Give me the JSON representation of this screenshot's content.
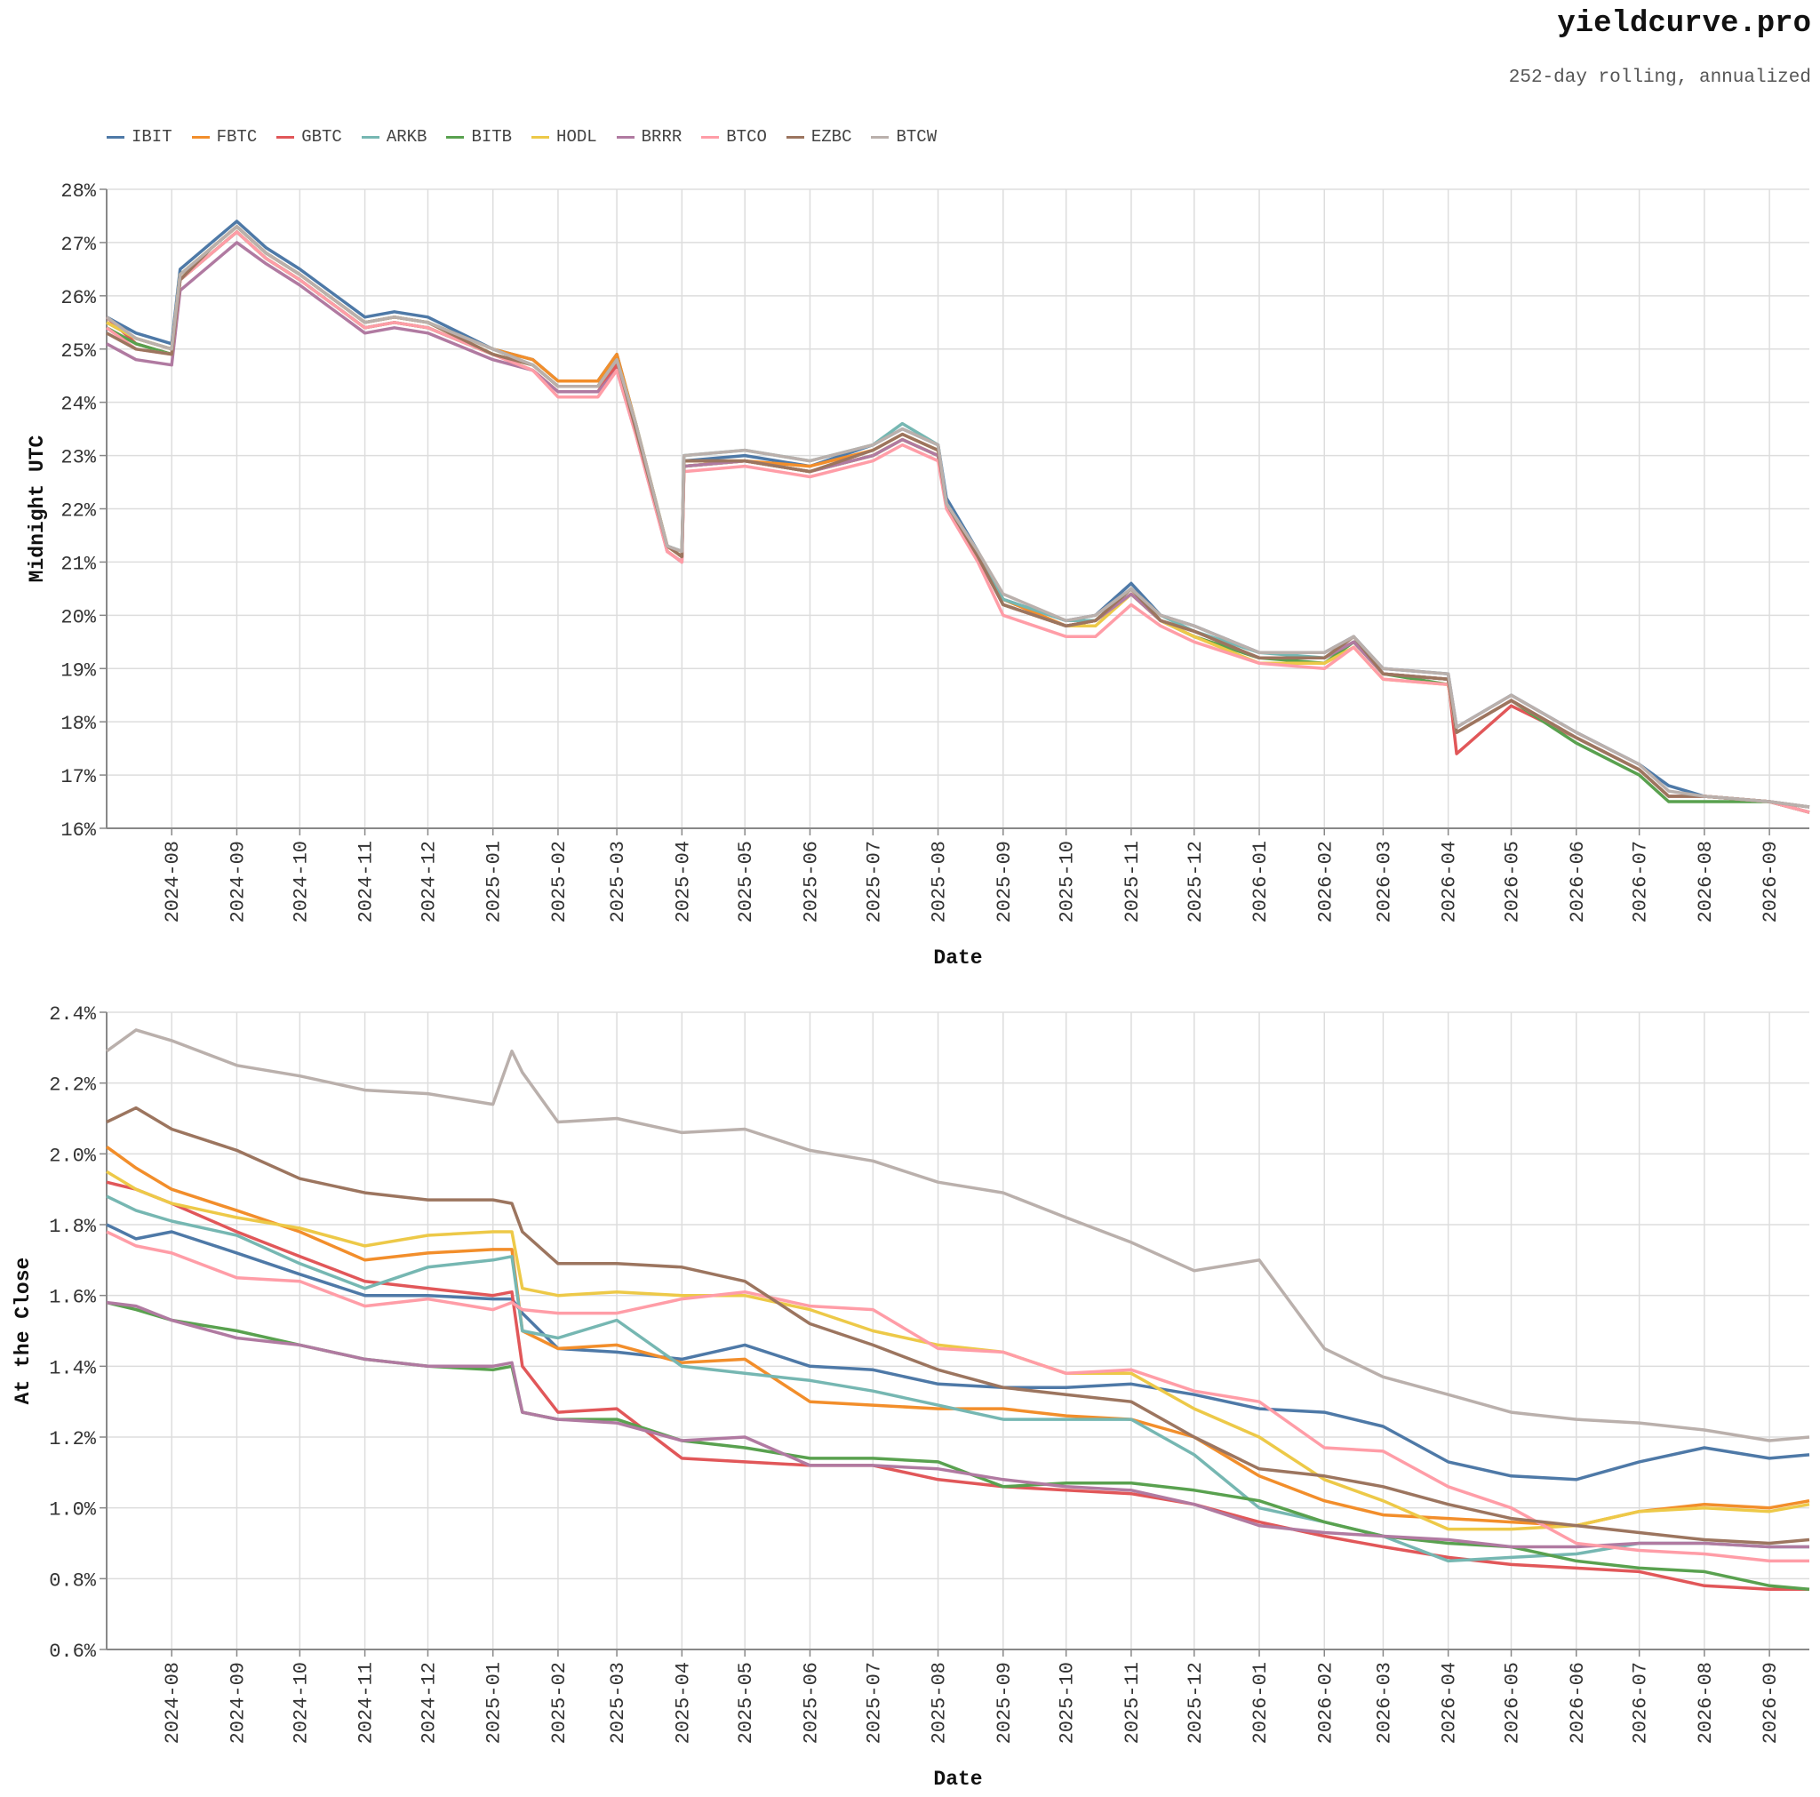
{
  "header": {
    "brand": "yieldcurve.pro",
    "subtitle": "252-day rolling, annualized"
  },
  "legend": [
    {
      "name": "IBIT",
      "color": "#4e79a7"
    },
    {
      "name": "FBTC",
      "color": "#f28e2b"
    },
    {
      "name": "GBTC",
      "color": "#e15759"
    },
    {
      "name": "ARKB",
      "color": "#76b7b2"
    },
    {
      "name": "BITB",
      "color": "#59a14f"
    },
    {
      "name": "HODL",
      "color": "#edc948"
    },
    {
      "name": "BRRR",
      "color": "#b07aa1"
    },
    {
      "name": "BTCO",
      "color": "#ff9da7"
    },
    {
      "name": "EZBC",
      "color": "#9c755f"
    },
    {
      "name": "BTCW",
      "color": "#bab0ac"
    }
  ],
  "chart_data": [
    {
      "type": "line",
      "xlabel": "Date",
      "ylabel": "Midnight UTC",
      "ylim": [
        16,
        28
      ],
      "y_ticks": [
        "16%",
        "17%",
        "18%",
        "19%",
        "20%",
        "21%",
        "22%",
        "23%",
        "24%",
        "25%",
        "26%",
        "27%",
        "28%"
      ],
      "x_ticks": [
        "2024-08",
        "2024-09",
        "2024-10",
        "2024-11",
        "2024-12",
        "2025-01",
        "2025-02",
        "2025-03",
        "2025-04",
        "2025-05",
        "2025-06",
        "2025-07",
        "2025-08",
        "2025-09",
        "2025-10",
        "2025-11",
        "2025-12",
        "2026-01",
        "2026-02",
        "2026-03",
        "2026-04",
        "2026-05",
        "2026-06",
        "2026-07",
        "2026-08",
        "2026-09"
      ],
      "x_range": [
        "2024-07-01",
        "2026-09-20"
      ],
      "grid": true,
      "x": [
        "2024-07-01",
        "2024-07-15",
        "2024-08-01",
        "2024-08-05",
        "2024-08-20",
        "2024-09-01",
        "2024-09-15",
        "2024-10-01",
        "2024-11-01",
        "2024-11-15",
        "2024-12-01",
        "2025-01-01",
        "2025-01-20",
        "2025-02-01",
        "2025-02-20",
        "2025-03-01",
        "2025-03-10",
        "2025-03-25",
        "2025-04-01",
        "2025-04-02",
        "2025-05-01",
        "2025-06-01",
        "2025-07-01",
        "2025-07-15",
        "2025-08-01",
        "2025-08-05",
        "2025-08-20",
        "2025-09-01",
        "2025-10-01",
        "2025-10-15",
        "2025-11-01",
        "2025-11-15",
        "2025-12-01",
        "2026-01-01",
        "2026-02-01",
        "2026-02-15",
        "2026-03-01",
        "2026-04-01",
        "2026-04-05",
        "2026-05-01",
        "2026-06-01",
        "2026-07-01",
        "2026-07-15",
        "2026-08-01",
        "2026-09-01",
        "2026-09-20"
      ],
      "series": [
        {
          "name": "IBIT",
          "values": [
            25.6,
            25.3,
            25.1,
            26.5,
            27.0,
            27.4,
            26.9,
            26.5,
            25.6,
            25.7,
            25.6,
            25.0,
            24.8,
            24.4,
            24.4,
            24.9,
            23.6,
            21.3,
            21.2,
            22.9,
            23.0,
            22.8,
            23.2,
            23.5,
            23.2,
            22.2,
            21.2,
            20.3,
            19.9,
            20.0,
            20.6,
            20.0,
            19.8,
            19.3,
            19.3,
            19.6,
            19.0,
            18.9,
            17.9,
            18.5,
            17.8,
            17.2,
            16.8,
            16.6,
            16.5,
            16.4
          ]
        },
        {
          "name": "FBTC",
          "values": [
            25.5,
            25.2,
            25.0,
            26.4,
            26.9,
            27.3,
            26.8,
            26.4,
            25.5,
            25.6,
            25.5,
            25.0,
            24.8,
            24.4,
            24.4,
            24.9,
            23.6,
            21.3,
            21.1,
            22.9,
            22.9,
            22.8,
            23.1,
            23.4,
            23.1,
            22.1,
            21.1,
            20.3,
            19.8,
            19.9,
            20.5,
            19.9,
            19.7,
            19.2,
            19.2,
            19.5,
            18.9,
            18.8,
            17.8,
            18.4,
            17.7,
            17.1,
            16.6,
            16.6,
            16.5,
            16.3
          ]
        },
        {
          "name": "GBTC",
          "values": [
            25.6,
            25.1,
            24.9,
            26.3,
            26.8,
            27.2,
            26.7,
            26.3,
            25.4,
            25.5,
            25.4,
            24.9,
            24.6,
            24.2,
            24.2,
            24.7,
            23.5,
            21.2,
            21.0,
            22.8,
            22.9,
            22.7,
            23.0,
            23.3,
            23.0,
            22.1,
            21.1,
            20.2,
            19.8,
            19.9,
            20.4,
            19.9,
            19.6,
            19.2,
            19.2,
            19.5,
            18.9,
            18.8,
            17.4,
            18.3,
            17.7,
            17.1,
            16.6,
            16.6,
            16.5,
            16.3
          ]
        },
        {
          "name": "ARKB",
          "values": [
            25.5,
            25.2,
            25.0,
            26.4,
            26.9,
            27.3,
            26.8,
            26.4,
            25.5,
            25.6,
            25.5,
            25.0,
            24.7,
            24.3,
            24.3,
            24.8,
            23.6,
            21.3,
            21.2,
            23.0,
            23.1,
            22.9,
            23.2,
            23.6,
            23.2,
            22.1,
            21.2,
            20.3,
            19.9,
            19.9,
            20.5,
            20.0,
            19.7,
            19.3,
            19.2,
            19.5,
            18.9,
            18.8,
            17.8,
            18.4,
            17.7,
            17.1,
            16.6,
            16.6,
            16.5,
            16.3
          ]
        },
        {
          "name": "BITB",
          "values": [
            25.4,
            25.1,
            24.9,
            26.3,
            26.8,
            27.2,
            26.7,
            26.3,
            25.4,
            25.5,
            25.4,
            24.9,
            24.7,
            24.3,
            24.3,
            24.8,
            23.5,
            21.3,
            21.1,
            22.8,
            22.9,
            22.7,
            23.0,
            23.3,
            23.0,
            22.1,
            21.1,
            20.2,
            19.8,
            19.9,
            20.4,
            19.9,
            19.6,
            19.2,
            19.1,
            19.5,
            18.9,
            18.7,
            17.8,
            18.4,
            17.6,
            17.0,
            16.5,
            16.5,
            16.5,
            16.3
          ]
        },
        {
          "name": "HODL",
          "values": [
            25.5,
            25.2,
            25.0,
            26.4,
            26.9,
            27.3,
            26.8,
            26.4,
            25.5,
            25.6,
            25.5,
            24.9,
            24.7,
            24.3,
            24.3,
            24.8,
            23.6,
            21.3,
            21.1,
            22.8,
            22.9,
            22.7,
            23.0,
            23.3,
            23.0,
            22.1,
            21.1,
            20.2,
            19.8,
            19.8,
            20.4,
            19.9,
            19.6,
            19.1,
            19.1,
            19.4,
            18.8,
            18.7,
            17.8,
            18.4,
            17.7,
            17.1,
            16.6,
            16.6,
            16.5,
            16.3
          ]
        },
        {
          "name": "BRRR",
          "values": [
            25.1,
            24.8,
            24.7,
            26.1,
            26.6,
            27.0,
            26.6,
            26.2,
            25.3,
            25.4,
            25.3,
            24.8,
            24.6,
            24.2,
            24.2,
            24.6,
            23.4,
            21.2,
            21.0,
            22.8,
            22.9,
            22.7,
            23.0,
            23.3,
            23.0,
            22.1,
            21.1,
            20.2,
            19.8,
            19.9,
            20.4,
            19.9,
            19.7,
            19.2,
            19.2,
            19.5,
            18.9,
            18.8,
            17.8,
            18.4,
            17.7,
            17.1,
            16.6,
            16.6,
            16.5,
            16.3
          ]
        },
        {
          "name": "BTCO",
          "values": [
            25.4,
            25.0,
            24.9,
            26.3,
            26.8,
            27.2,
            26.7,
            26.3,
            25.4,
            25.5,
            25.4,
            24.9,
            24.6,
            24.1,
            24.1,
            24.6,
            23.4,
            21.2,
            21.0,
            22.7,
            22.8,
            22.6,
            22.9,
            23.2,
            22.9,
            22.0,
            21.0,
            20.0,
            19.6,
            19.6,
            20.2,
            19.8,
            19.5,
            19.1,
            19.0,
            19.4,
            18.8,
            18.7,
            17.8,
            18.4,
            17.7,
            17.1,
            16.6,
            16.6,
            16.5,
            16.3
          ]
        },
        {
          "name": "EZBC",
          "values": [
            25.3,
            25.0,
            24.9,
            26.3,
            26.9,
            27.3,
            26.8,
            26.4,
            25.5,
            25.6,
            25.5,
            24.9,
            24.7,
            24.3,
            24.3,
            24.8,
            23.5,
            21.3,
            21.1,
            22.9,
            22.9,
            22.7,
            23.1,
            23.4,
            23.1,
            22.1,
            21.1,
            20.2,
            19.8,
            19.9,
            20.5,
            19.9,
            19.7,
            19.2,
            19.2,
            19.6,
            18.9,
            18.8,
            17.8,
            18.4,
            17.7,
            17.1,
            16.6,
            16.6,
            16.5,
            16.4
          ]
        },
        {
          "name": "BTCW",
          "values": [
            25.6,
            25.2,
            25.0,
            26.4,
            26.9,
            27.3,
            26.8,
            26.4,
            25.5,
            25.6,
            25.5,
            25.0,
            24.7,
            24.3,
            24.3,
            24.8,
            23.6,
            21.3,
            21.2,
            23.0,
            23.1,
            22.9,
            23.2,
            23.5,
            23.2,
            22.1,
            21.2,
            20.4,
            19.9,
            20.0,
            20.5,
            20.0,
            19.8,
            19.3,
            19.3,
            19.6,
            19.0,
            18.9,
            17.9,
            18.5,
            17.8,
            17.2,
            16.7,
            16.6,
            16.5,
            16.4
          ]
        }
      ]
    },
    {
      "type": "line",
      "xlabel": "Date",
      "ylabel": "At the Close",
      "ylim": [
        0.6,
        2.4
      ],
      "y_ticks": [
        "0.6%",
        "0.8%",
        "1.0%",
        "1.2%",
        "1.4%",
        "1.6%",
        "1.8%",
        "2.0%",
        "2.2%",
        "2.4%"
      ],
      "x_ticks": [
        "2024-08",
        "2024-09",
        "2024-10",
        "2024-11",
        "2024-12",
        "2025-01",
        "2025-02",
        "2025-03",
        "2025-04",
        "2025-05",
        "2025-06",
        "2025-07",
        "2025-08",
        "2025-09",
        "2025-10",
        "2025-11",
        "2025-12",
        "2026-01",
        "2026-02",
        "2026-03",
        "2026-04",
        "2026-05",
        "2026-06",
        "2026-07",
        "2026-08",
        "2026-09"
      ],
      "x_range": [
        "2024-07-01",
        "2026-09-20"
      ],
      "grid": true,
      "x": [
        "2024-07-01",
        "2024-07-15",
        "2024-08-01",
        "2024-09-01",
        "2024-10-01",
        "2024-11-01",
        "2024-12-01",
        "2025-01-01",
        "2025-01-10",
        "2025-01-15",
        "2025-02-01",
        "2025-03-01",
        "2025-04-01",
        "2025-05-01",
        "2025-06-01",
        "2025-07-01",
        "2025-08-01",
        "2025-09-01",
        "2025-10-01",
        "2025-11-01",
        "2025-12-01",
        "2026-01-01",
        "2026-02-01",
        "2026-03-01",
        "2026-04-01",
        "2026-05-01",
        "2026-06-01",
        "2026-07-01",
        "2026-08-01",
        "2026-09-01",
        "2026-09-20"
      ],
      "series": [
        {
          "name": "IBIT",
          "values": [
            1.8,
            1.76,
            1.78,
            1.72,
            1.66,
            1.6,
            1.6,
            1.59,
            1.59,
            1.55,
            1.45,
            1.44,
            1.42,
            1.46,
            1.4,
            1.39,
            1.35,
            1.34,
            1.34,
            1.35,
            1.32,
            1.28,
            1.27,
            1.23,
            1.13,
            1.09,
            1.08,
            1.13,
            1.17,
            1.14,
            1.15
          ]
        },
        {
          "name": "FBTC",
          "values": [
            2.02,
            1.96,
            1.9,
            1.84,
            1.78,
            1.7,
            1.72,
            1.73,
            1.73,
            1.5,
            1.45,
            1.46,
            1.41,
            1.42,
            1.3,
            1.29,
            1.28,
            1.28,
            1.26,
            1.25,
            1.2,
            1.09,
            1.02,
            0.98,
            0.97,
            0.96,
            0.95,
            0.99,
            1.01,
            1.0,
            1.02
          ]
        },
        {
          "name": "GBTC",
          "values": [
            1.92,
            1.9,
            1.86,
            1.78,
            1.71,
            1.64,
            1.62,
            1.6,
            1.61,
            1.4,
            1.27,
            1.28,
            1.14,
            1.13,
            1.12,
            1.12,
            1.08,
            1.06,
            1.05,
            1.04,
            1.01,
            0.96,
            0.92,
            0.89,
            0.86,
            0.84,
            0.83,
            0.82,
            0.78,
            0.77,
            0.77
          ]
        },
        {
          "name": "ARKB",
          "values": [
            1.88,
            1.84,
            1.81,
            1.77,
            1.69,
            1.62,
            1.68,
            1.7,
            1.71,
            1.5,
            1.48,
            1.53,
            1.4,
            1.38,
            1.36,
            1.33,
            1.29,
            1.25,
            1.25,
            1.25,
            1.15,
            1.0,
            0.96,
            0.92,
            0.85,
            0.86,
            0.87,
            0.9,
            0.9,
            0.89,
            0.89
          ]
        },
        {
          "name": "BITB",
          "values": [
            1.58,
            1.56,
            1.53,
            1.5,
            1.46,
            1.42,
            1.4,
            1.39,
            1.4,
            1.27,
            1.25,
            1.25,
            1.19,
            1.17,
            1.14,
            1.14,
            1.13,
            1.06,
            1.07,
            1.07,
            1.05,
            1.02,
            0.96,
            0.92,
            0.9,
            0.89,
            0.85,
            0.83,
            0.82,
            0.78,
            0.77
          ]
        },
        {
          "name": "HODL",
          "values": [
            1.95,
            1.9,
            1.86,
            1.82,
            1.79,
            1.74,
            1.77,
            1.78,
            1.78,
            1.62,
            1.6,
            1.61,
            1.6,
            1.6,
            1.56,
            1.5,
            1.46,
            1.44,
            1.38,
            1.38,
            1.28,
            1.2,
            1.08,
            1.02,
            0.94,
            0.94,
            0.95,
            0.99,
            1.0,
            0.99,
            1.01
          ]
        },
        {
          "name": "BRRR",
          "values": [
            1.58,
            1.57,
            1.53,
            1.48,
            1.46,
            1.42,
            1.4,
            1.4,
            1.41,
            1.27,
            1.25,
            1.24,
            1.19,
            1.2,
            1.12,
            1.12,
            1.11,
            1.08,
            1.06,
            1.05,
            1.01,
            0.95,
            0.93,
            0.92,
            0.91,
            0.89,
            0.89,
            0.9,
            0.9,
            0.89,
            0.89
          ]
        },
        {
          "name": "BTCO",
          "values": [
            1.78,
            1.74,
            1.72,
            1.65,
            1.64,
            1.57,
            1.59,
            1.56,
            1.58,
            1.56,
            1.55,
            1.55,
            1.59,
            1.61,
            1.57,
            1.56,
            1.45,
            1.44,
            1.38,
            1.39,
            1.33,
            1.3,
            1.17,
            1.16,
            1.06,
            1.0,
            0.9,
            0.88,
            0.87,
            0.85,
            0.85
          ]
        },
        {
          "name": "EZBC",
          "values": [
            2.09,
            2.13,
            2.07,
            2.01,
            1.93,
            1.89,
            1.87,
            1.87,
            1.86,
            1.78,
            1.69,
            1.69,
            1.68,
            1.64,
            1.52,
            1.46,
            1.39,
            1.34,
            1.32,
            1.3,
            1.2,
            1.11,
            1.09,
            1.06,
            1.01,
            0.97,
            0.95,
            0.93,
            0.91,
            0.9,
            0.91
          ]
        },
        {
          "name": "BTCW",
          "values": [
            2.29,
            2.35,
            2.32,
            2.25,
            2.22,
            2.18,
            2.17,
            2.14,
            2.29,
            2.23,
            2.09,
            2.1,
            2.06,
            2.07,
            2.01,
            1.98,
            1.92,
            1.89,
            1.82,
            1.75,
            1.67,
            1.7,
            1.45,
            1.37,
            1.32,
            1.27,
            1.25,
            1.24,
            1.22,
            1.19,
            1.2
          ]
        }
      ]
    }
  ]
}
